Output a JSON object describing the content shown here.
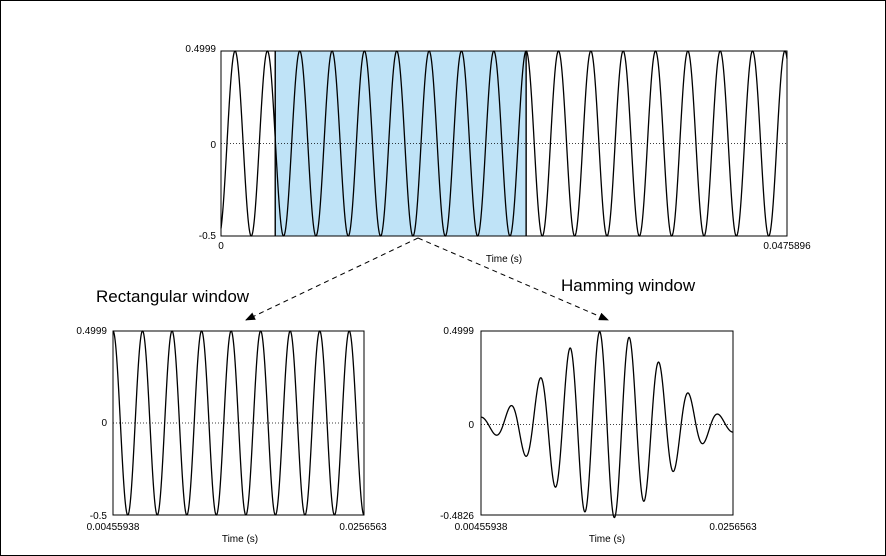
{
  "chart_data": [
    {
      "type": "line",
      "name_key": "top",
      "xlabel": "Time (s)",
      "xlim": [
        0,
        0.0475896
      ],
      "ylim": [
        -0.5,
        0.4999
      ],
      "x_ticks": [
        "0",
        "0.0475896"
      ],
      "y_ticks": [
        "0.4999",
        "0",
        "-0.5"
      ],
      "cycles": 17.5,
      "highlight_range": [
        0.00455938,
        0.0256563
      ],
      "highlight_color": "#bfe3f7"
    },
    {
      "type": "line",
      "xlabel": "Time (s)",
      "xlim": [
        0.00455938,
        0.0256563
      ],
      "ylim": [
        -0.5,
        0.4999
      ],
      "x_ticks": [
        "0.00455938",
        "0.0256563"
      ],
      "y_ticks": [
        "0.4999",
        "0",
        "-0.5"
      ],
      "cycles": 8.5,
      "window": "rectangular"
    },
    {
      "type": "line",
      "xlabel": "Time (s)",
      "xlim": [
        0.00455938,
        0.0256563
      ],
      "ylim": [
        -0.4826,
        0.4999
      ],
      "x_ticks": [
        "0.00455938",
        "0.0256563"
      ],
      "y_ticks": [
        "0.4999",
        "0",
        "-0.4826"
      ],
      "cycles": 8.5,
      "window": "hamming"
    }
  ],
  "labels": {
    "rect": "Rectangular window",
    "hamm": "Hamming window"
  }
}
